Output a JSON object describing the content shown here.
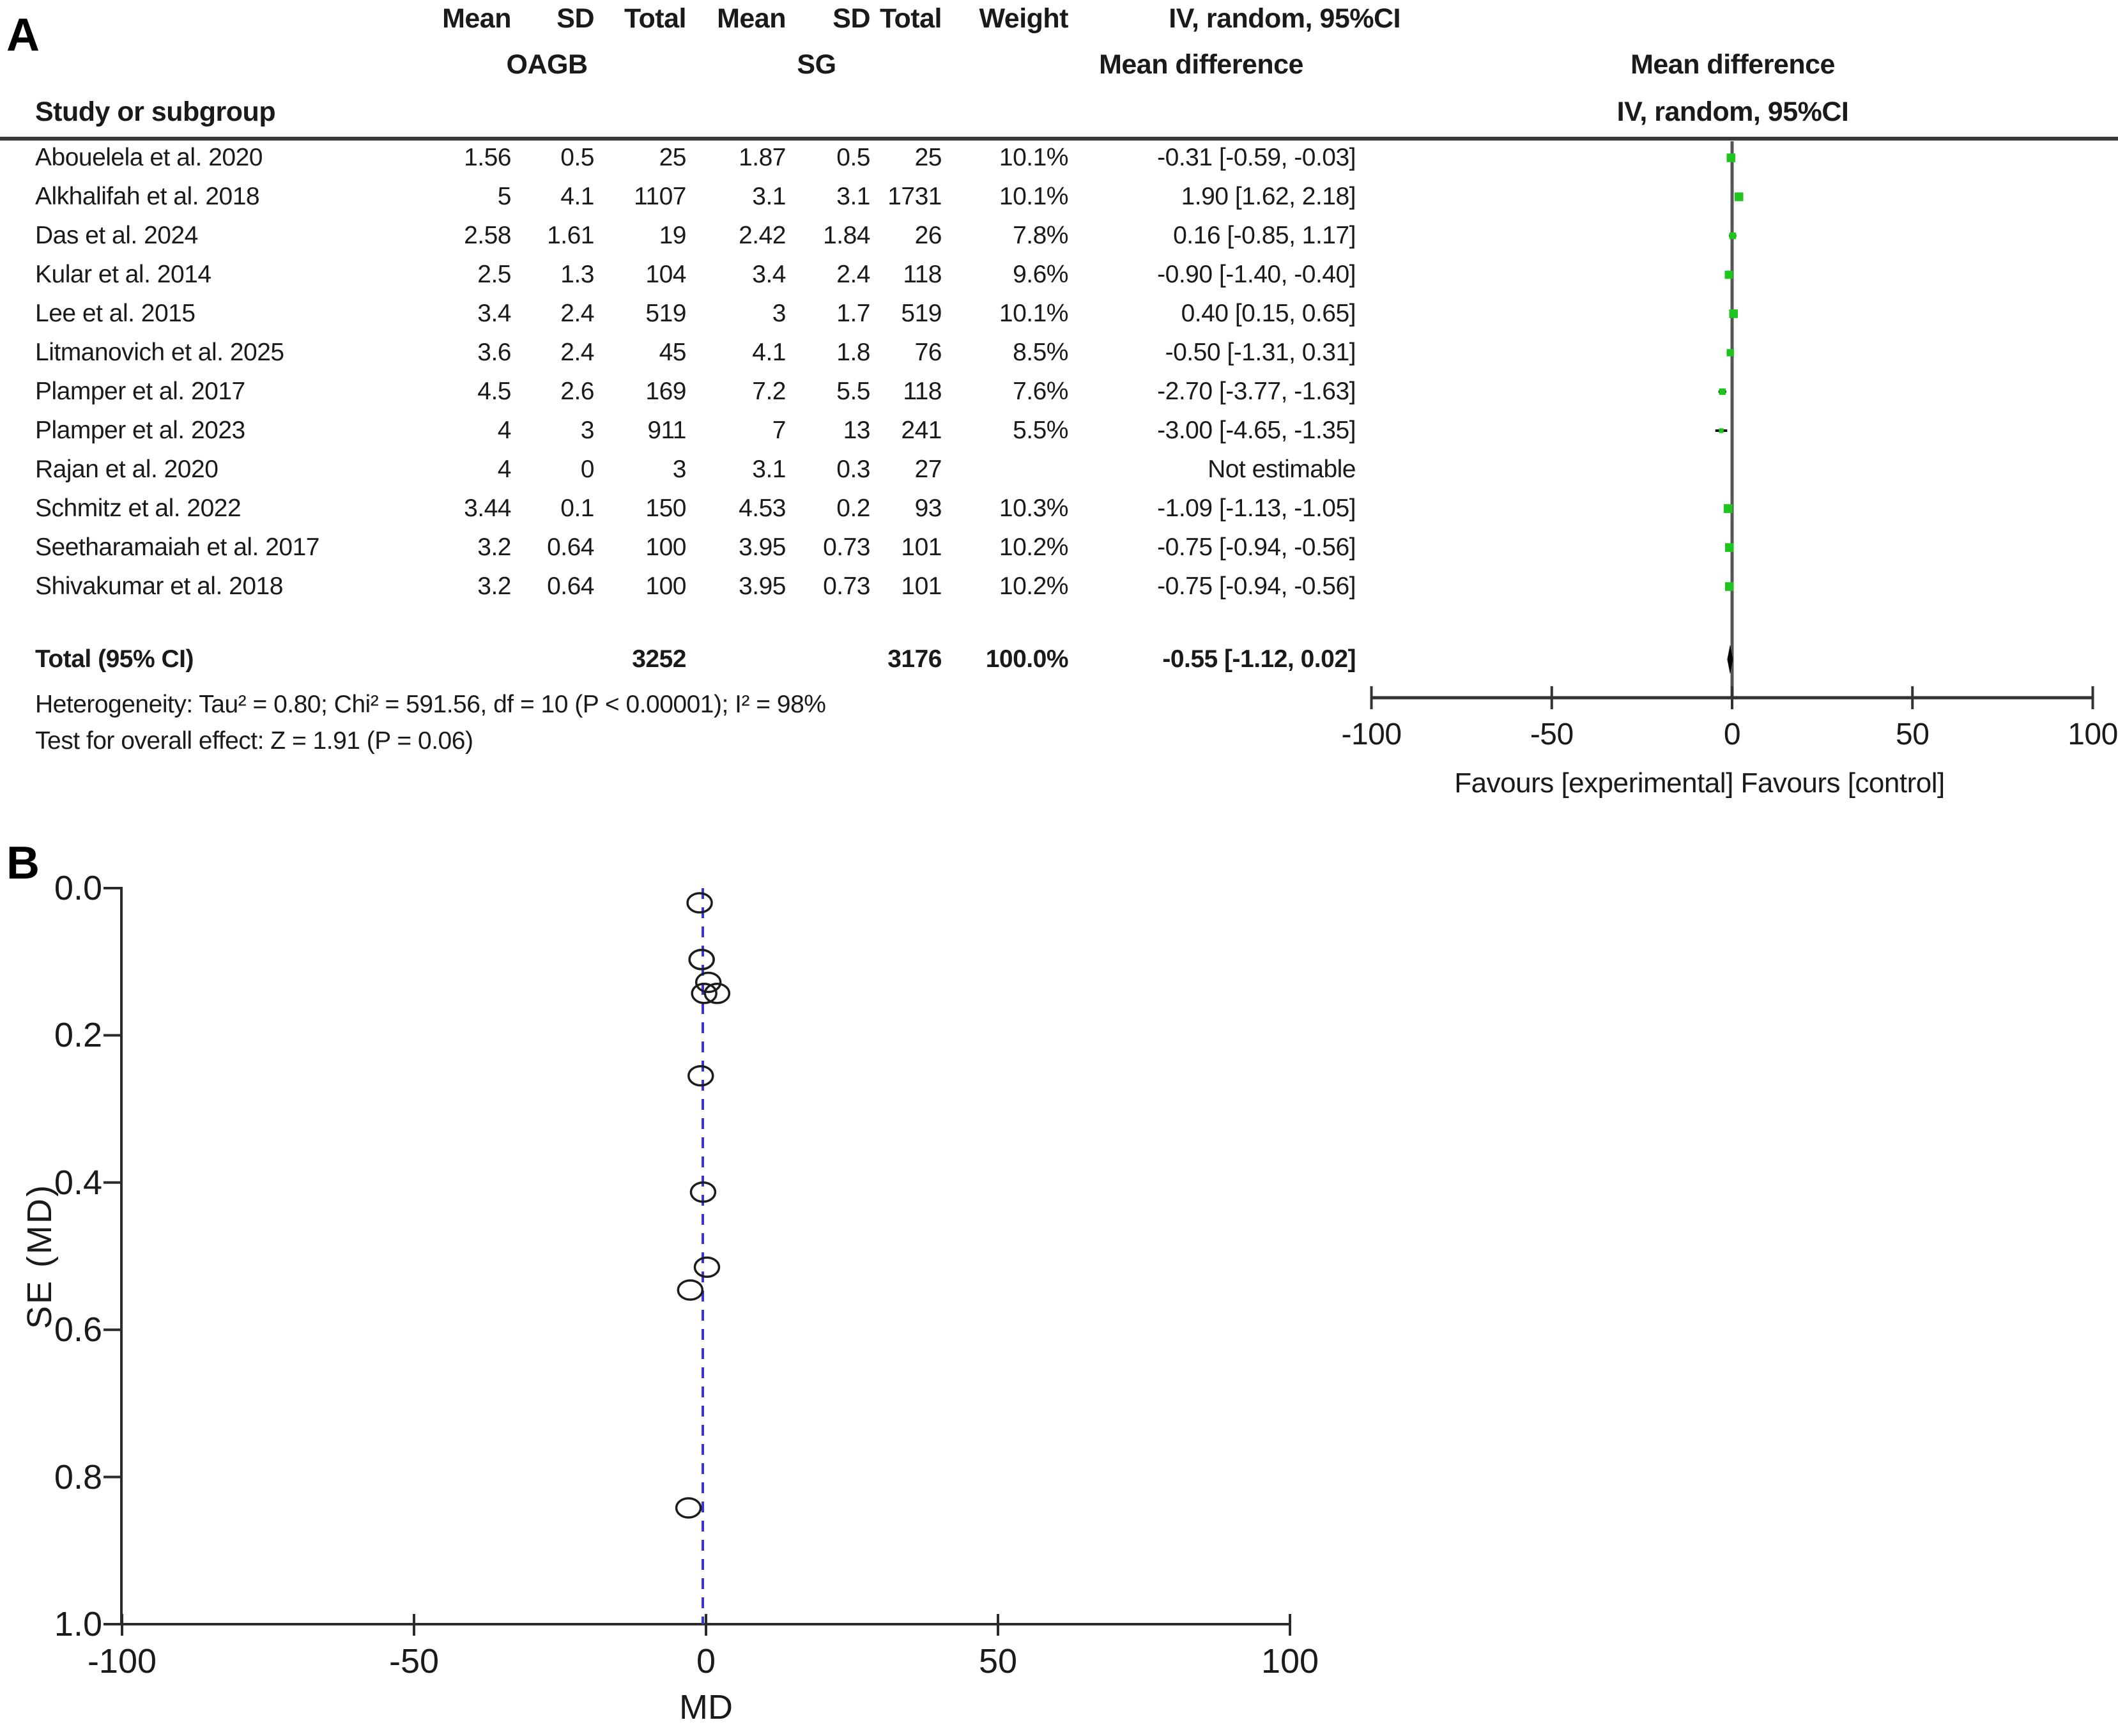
{
  "panel_a": {
    "label": "A",
    "group_headers": {
      "oagb": "OAGB",
      "sg": "SG",
      "md": "Mean difference"
    },
    "plot_headers": {
      "md": "Mean difference",
      "iv": "IV, random, 95%CI"
    },
    "columns": {
      "study": "Study or subgroup",
      "mean": "Mean",
      "sd": "SD",
      "total": "Total",
      "weight": "Weight",
      "iv": "IV, random, 95%CI"
    },
    "studies": [
      {
        "name": "Abouelela et al. 2020",
        "m1": "1.56",
        "sd1": "0.5",
        "t1": "25",
        "m2": "1.87",
        "sd2": "0.5",
        "t2": "25",
        "w": "10.1%",
        "ci": "-0.31 [-0.59, -0.03]",
        "md": -0.31,
        "lo": -0.59,
        "hi": -0.03
      },
      {
        "name": "Alkhalifah et al. 2018",
        "m1": "5",
        "sd1": "4.1",
        "t1": "1107",
        "m2": "3.1",
        "sd2": "3.1",
        "t2": "1731",
        "w": "10.1%",
        "ci": "1.90 [1.62, 2.18]",
        "md": 1.9,
        "lo": 1.62,
        "hi": 2.18
      },
      {
        "name": "Das et al. 2024",
        "m1": "2.58",
        "sd1": "1.61",
        "t1": "19",
        "m2": "2.42",
        "sd2": "1.84",
        "t2": "26",
        "w": "7.8%",
        "ci": "0.16 [-0.85, 1.17]",
        "md": 0.16,
        "lo": -0.85,
        "hi": 1.17
      },
      {
        "name": "Kular et al. 2014",
        "m1": "2.5",
        "sd1": "1.3",
        "t1": "104",
        "m2": "3.4",
        "sd2": "2.4",
        "t2": "118",
        "w": "9.6%",
        "ci": "-0.90 [-1.40, -0.40]",
        "md": -0.9,
        "lo": -1.4,
        "hi": -0.4
      },
      {
        "name": "Lee et al. 2015",
        "m1": "3.4",
        "sd1": "2.4",
        "t1": "519",
        "m2": "3",
        "sd2": "1.7",
        "t2": "519",
        "w": "10.1%",
        "ci": "0.40 [0.15, 0.65]",
        "md": 0.4,
        "lo": 0.15,
        "hi": 0.65
      },
      {
        "name": "Litmanovich et al. 2025",
        "m1": "3.6",
        "sd1": "2.4",
        "t1": "45",
        "m2": "4.1",
        "sd2": "1.8",
        "t2": "76",
        "w": "8.5%",
        "ci": "-0.50 [-1.31, 0.31]",
        "md": -0.5,
        "lo": -1.31,
        "hi": 0.31
      },
      {
        "name": "Plamper et al. 2017",
        "m1": "4.5",
        "sd1": "2.6",
        "t1": "169",
        "m2": "7.2",
        "sd2": "5.5",
        "t2": "118",
        "w": "7.6%",
        "ci": "-2.70 [-3.77, -1.63]",
        "md": -2.7,
        "lo": -3.77,
        "hi": -1.63
      },
      {
        "name": "Plamper et al. 2023",
        "m1": "4",
        "sd1": "3",
        "t1": "911",
        "m2": "7",
        "sd2": "13",
        "t2": "241",
        "w": "5.5%",
        "ci": "-3.00 [-4.65, -1.35]",
        "md": -3.0,
        "lo": -4.65,
        "hi": -1.35
      },
      {
        "name": "Rajan et al. 2020",
        "m1": "4",
        "sd1": "0",
        "t1": "3",
        "m2": "3.1",
        "sd2": "0.3",
        "t2": "27",
        "w": "",
        "ci": "Not estimable",
        "md": null,
        "lo": null,
        "hi": null
      },
      {
        "name": "Schmitz et al. 2022",
        "m1": "3.44",
        "sd1": "0.1",
        "t1": "150",
        "m2": "4.53",
        "sd2": "0.2",
        "t2": "93",
        "w": "10.3%",
        "ci": "-1.09 [-1.13, -1.05]",
        "md": -1.09,
        "lo": -1.13,
        "hi": -1.05
      },
      {
        "name": "Seetharamaiah et al. 2017",
        "m1": "3.2",
        "sd1": "0.64",
        "t1": "100",
        "m2": "3.95",
        "sd2": "0.73",
        "t2": "101",
        "w": "10.2%",
        "ci": "-0.75 [-0.94, -0.56]",
        "md": -0.75,
        "lo": -0.94,
        "hi": -0.56
      },
      {
        "name": "Shivakumar et al. 2018",
        "m1": "3.2",
        "sd1": "0.64",
        "t1": "100",
        "m2": "3.95",
        "sd2": "0.73",
        "t2": "101",
        "w": "10.2%",
        "ci": "-0.75 [-0.94, -0.56]",
        "md": -0.75,
        "lo": -0.94,
        "hi": -0.56
      }
    ],
    "total": {
      "label": "Total (95% CI)",
      "t1": "3252",
      "t2": "3176",
      "w": "100.0%",
      "ci": "-0.55 [-1.12, 0.02]",
      "md": -0.55,
      "lo": -1.12,
      "hi": 0.02
    },
    "heterogeneity": "Heterogeneity: Tau² = 0.80; Chi² = 591.56, df = 10 (P < 0.00001); I² = 98%",
    "overall_effect": "Test for overall effect: Z = 1.91 (P = 0.06)",
    "axis": {
      "ticks": [
        "-100",
        "-50",
        "0",
        "50",
        "100"
      ],
      "favours": "Favours [experimental] Favours [control]"
    },
    "marker_color": "#1fc41f"
  },
  "panel_b": {
    "label": "B",
    "xlabel": "MD",
    "ylabel": "SE (MD)",
    "x_ticks": [
      "-100",
      "-50",
      "0",
      "50",
      "100"
    ],
    "y_ticks": [
      "0.0",
      "0.2",
      "0.4",
      "0.6",
      "0.8",
      "1.0"
    ],
    "dashed_line_color": "#3636cf"
  },
  "chart_data": [
    {
      "type": "table",
      "title": "Forest plot: mean difference (OAGB vs SG), IV random-effects, 95%CI",
      "xlabel": "Favours [experimental] Favours [control]",
      "x_axis_ticks": [
        -100,
        -50,
        0,
        50,
        100
      ],
      "studies": [
        {
          "study": "Abouelela et al. 2020",
          "oagb_mean": 1.56,
          "oagb_sd": 0.5,
          "oagb_total": 25,
          "sg_mean": 1.87,
          "sg_sd": 0.5,
          "sg_total": 25,
          "weight_pct": 10.1,
          "md": -0.31,
          "ci_low": -0.59,
          "ci_high": -0.03
        },
        {
          "study": "Alkhalifah et al. 2018",
          "oagb_mean": 5,
          "oagb_sd": 4.1,
          "oagb_total": 1107,
          "sg_mean": 3.1,
          "sg_sd": 3.1,
          "sg_total": 1731,
          "weight_pct": 10.1,
          "md": 1.9,
          "ci_low": 1.62,
          "ci_high": 2.18
        },
        {
          "study": "Das et al. 2024",
          "oagb_mean": 2.58,
          "oagb_sd": 1.61,
          "oagb_total": 19,
          "sg_mean": 2.42,
          "sg_sd": 1.84,
          "sg_total": 26,
          "weight_pct": 7.8,
          "md": 0.16,
          "ci_low": -0.85,
          "ci_high": 1.17
        },
        {
          "study": "Kular et al. 2014",
          "oagb_mean": 2.5,
          "oagb_sd": 1.3,
          "oagb_total": 104,
          "sg_mean": 3.4,
          "sg_sd": 2.4,
          "sg_total": 118,
          "weight_pct": 9.6,
          "md": -0.9,
          "ci_low": -1.4,
          "ci_high": -0.4
        },
        {
          "study": "Lee et al. 2015",
          "oagb_mean": 3.4,
          "oagb_sd": 2.4,
          "oagb_total": 519,
          "sg_mean": 3,
          "sg_sd": 1.7,
          "sg_total": 519,
          "weight_pct": 10.1,
          "md": 0.4,
          "ci_low": 0.15,
          "ci_high": 0.65
        },
        {
          "study": "Litmanovich et al. 2025",
          "oagb_mean": 3.6,
          "oagb_sd": 2.4,
          "oagb_total": 45,
          "sg_mean": 4.1,
          "sg_sd": 1.8,
          "sg_total": 76,
          "weight_pct": 8.5,
          "md": -0.5,
          "ci_low": -1.31,
          "ci_high": 0.31
        },
        {
          "study": "Plamper et al. 2017",
          "oagb_mean": 4.5,
          "oagb_sd": 2.6,
          "oagb_total": 169,
          "sg_mean": 7.2,
          "sg_sd": 5.5,
          "sg_total": 118,
          "weight_pct": 7.6,
          "md": -2.7,
          "ci_low": -3.77,
          "ci_high": -1.63
        },
        {
          "study": "Plamper et al. 2023",
          "oagb_mean": 4,
          "oagb_sd": 3,
          "oagb_total": 911,
          "sg_mean": 7,
          "sg_sd": 13,
          "sg_total": 241,
          "weight_pct": 5.5,
          "md": -3,
          "ci_low": -4.65,
          "ci_high": -1.35
        },
        {
          "study": "Rajan et al. 2020",
          "oagb_mean": 4,
          "oagb_sd": 0,
          "oagb_total": 3,
          "sg_mean": 3.1,
          "sg_sd": 0.3,
          "sg_total": 27,
          "weight_pct": null,
          "md": null,
          "ci_low": null,
          "ci_high": null
        },
        {
          "study": "Schmitz et al. 2022",
          "oagb_mean": 3.44,
          "oagb_sd": 0.1,
          "oagb_total": 150,
          "sg_mean": 4.53,
          "sg_sd": 0.2,
          "sg_total": 93,
          "weight_pct": 10.3,
          "md": -1.09,
          "ci_low": -1.13,
          "ci_high": -1.05
        },
        {
          "study": "Seetharamaiah et al. 2017",
          "oagb_mean": 3.2,
          "oagb_sd": 0.64,
          "oagb_total": 100,
          "sg_mean": 3.95,
          "sg_sd": 0.73,
          "sg_total": 101,
          "weight_pct": 10.2,
          "md": -0.75,
          "ci_low": -0.94,
          "ci_high": -0.56
        },
        {
          "study": "Shivakumar et al. 2018",
          "oagb_mean": 3.2,
          "oagb_sd": 0.64,
          "oagb_total": 100,
          "sg_mean": 3.95,
          "sg_sd": 0.73,
          "sg_total": 101,
          "weight_pct": 10.2,
          "md": -0.75,
          "ci_low": -0.94,
          "ci_high": -0.56
        }
      ],
      "total": {
        "oagb_total": 3252,
        "sg_total": 3176,
        "weight_pct": 100.0,
        "md": -0.55,
        "ci_low": -1.12,
        "ci_high": 0.02
      },
      "heterogeneity": {
        "tau2": 0.8,
        "chi2": 591.56,
        "df": 10,
        "p": "< 0.00001",
        "i2_pct": 98
      },
      "overall_effect": {
        "z": 1.91,
        "p": 0.06
      }
    },
    {
      "type": "scatter",
      "title": "Funnel plot",
      "xlabel": "MD",
      "ylabel": "SE (MD)",
      "xlim": [
        -100,
        100
      ],
      "ylim_top_to_bottom": [
        0.0,
        1.0
      ],
      "x_ticks": [
        -100,
        -50,
        0,
        50,
        100
      ],
      "y_ticks": [
        0.0,
        0.2,
        0.4,
        0.6,
        0.8,
        1.0
      ],
      "vline_md": -0.55,
      "points": [
        {
          "md": -1.09,
          "se": 0.02
        },
        {
          "md": -0.75,
          "se": 0.097
        },
        {
          "md": -0.75,
          "se": 0.097
        },
        {
          "md": 0.4,
          "se": 0.128
        },
        {
          "md": -0.31,
          "se": 0.143
        },
        {
          "md": 1.9,
          "se": 0.143
        },
        {
          "md": -0.9,
          "se": 0.255
        },
        {
          "md": -0.5,
          "se": 0.413
        },
        {
          "md": 0.16,
          "se": 0.515
        },
        {
          "md": -2.7,
          "se": 0.546
        },
        {
          "md": -3.0,
          "se": 0.842
        }
      ]
    }
  ]
}
